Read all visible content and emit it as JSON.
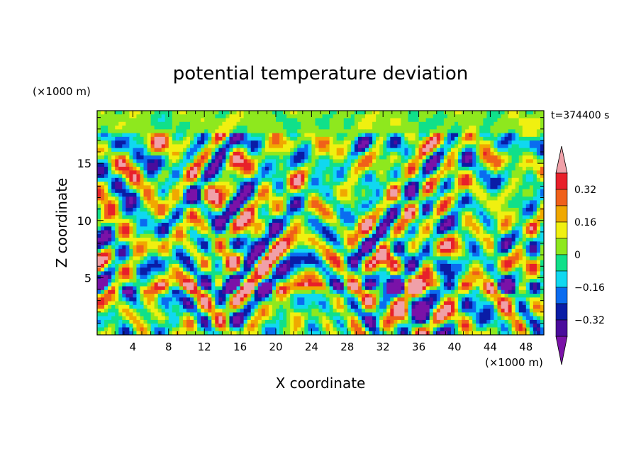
{
  "chart_data": {
    "type": "heatmap",
    "title": "potential temperature deviation",
    "time_label": "t=374400 s",
    "xlabel": "X coordinate",
    "ylabel": "Z coordinate",
    "x_unit": "(×1000 m)",
    "y_unit": "(×1000 m)",
    "xlim": [
      0,
      50
    ],
    "ylim": [
      0,
      19.6
    ],
    "x_ticks": [
      "4",
      "8",
      "12",
      "16",
      "20",
      "24",
      "28",
      "32",
      "36",
      "40",
      "44",
      "48"
    ],
    "y_ticks": [
      "5",
      "10",
      "15"
    ],
    "colorbar": {
      "levels": [
        -0.4,
        -0.32,
        -0.24,
        -0.16,
        -0.08,
        0,
        0.08,
        0.16,
        0.24,
        0.32,
        0.4
      ],
      "labels": [
        "0.32",
        "0.16",
        "0",
        "−0.16",
        "−0.32"
      ],
      "colors": [
        "#7a12a8",
        "#4a0c9c",
        "#0a1ca6",
        "#0a6cf0",
        "#10d8f0",
        "#10e08a",
        "#8ee81e",
        "#f0f010",
        "#f0a800",
        "#f0601a",
        "#e8202a",
        "#f0a0a8"
      ]
    }
  }
}
